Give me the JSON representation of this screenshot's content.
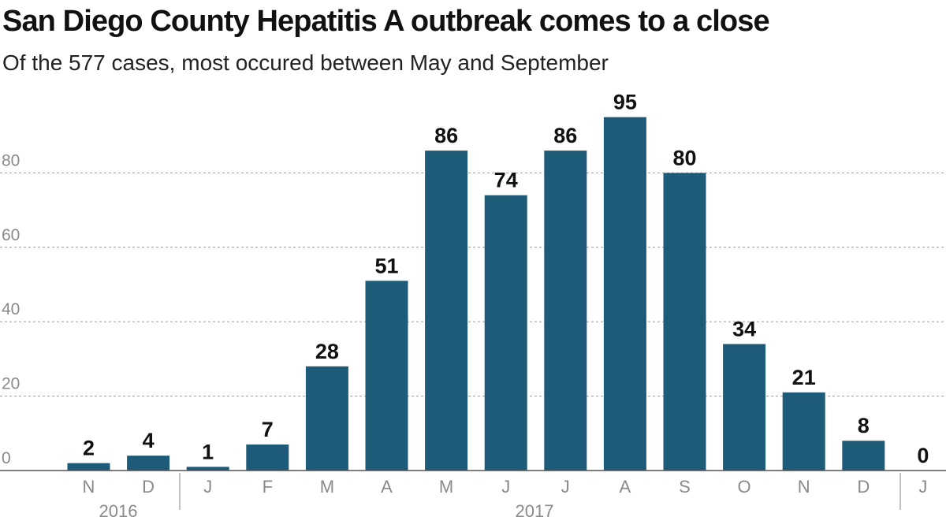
{
  "chart_data": {
    "type": "bar",
    "title": "San Diego County Hepatitis A outbreak comes to a close",
    "subtitle": "Of the 577 cases, most occured between May and September",
    "categories": [
      "N",
      "D",
      "J",
      "F",
      "M",
      "A",
      "M",
      "J",
      "J",
      "A",
      "S",
      "O",
      "N",
      "D",
      "J"
    ],
    "values": [
      2,
      4,
      1,
      7,
      28,
      51,
      86,
      74,
      86,
      95,
      80,
      34,
      21,
      8,
      0
    ],
    "year_labels": [
      "2016",
      "2017"
    ],
    "ylim": [
      0,
      100
    ],
    "yticks": [
      0,
      20,
      40,
      60,
      80
    ],
    "xlabel": "",
    "ylabel": "",
    "grid": true,
    "bar_color": "#1e5b78",
    "legend": "none"
  }
}
